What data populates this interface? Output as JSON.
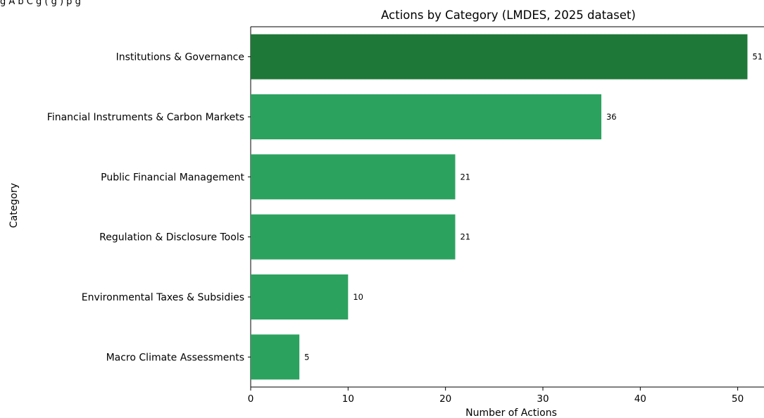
{
  "caption_fragment": "g        A         b    C    g    (           g    )                                                                         p  g",
  "chart_data": {
    "type": "bar",
    "orientation": "horizontal",
    "title": "Actions by Category (LMDES, 2025 dataset)",
    "xlabel": "Number of Actions",
    "ylabel": "Category",
    "categories": [
      "Institutions & Governance",
      "Financial Instruments & Carbon Markets",
      "Public Financial Management",
      "Regulation & Disclosure Tools",
      "Environmental Taxes & Subsidies",
      "Macro Climate Assessments"
    ],
    "values": [
      51,
      36,
      21,
      21,
      10,
      5
    ],
    "data_labels": [
      "51",
      "36",
      "21",
      "21",
      "10",
      "5"
    ],
    "xlim": [
      0,
      52.7
    ],
    "xticks": [
      "0",
      "10",
      "20",
      "30",
      "40",
      "50"
    ],
    "grid": false,
    "colors": {
      "highlight": "#1e7838",
      "bar": "#2ca25f",
      "axis": "#000000"
    }
  }
}
